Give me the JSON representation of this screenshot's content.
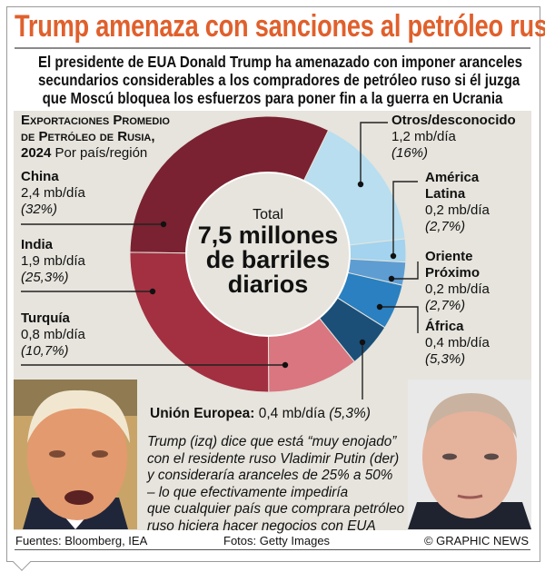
{
  "title": "Trump amenaza con sanciones al petróleo ruso",
  "subtitle_lines": [
    "El presidente de EUA Donald Trump ha amenazado con imponer aranceles",
    "secundarios considerables a los compradores de petróleo ruso si él juzga",
    "que Moscú bloquea los esfuerzos para poner fin a la guerra en Ucrania"
  ],
  "chart_data": {
    "type": "pie",
    "variant": "donut",
    "title_line1": "Exportaciones Promedio",
    "title_line2": "de Petróleo de Rusia,",
    "title_year": "2024",
    "title_suffix": "Por país/región",
    "center_label": "Total",
    "center_value_lines": [
      "7,5 millones",
      "de barriles",
      "diarios"
    ],
    "total_mbd": 7.5,
    "unit": "mb/día",
    "slices": [
      {
        "name": "China",
        "value": 2.4,
        "value_label": "2,4 mb/día",
        "percent": 32,
        "percent_label": "(32%)",
        "color": "#7a2231"
      },
      {
        "name": "Otros/desconocido",
        "value": 1.2,
        "value_label": "1,2 mb/día",
        "percent": 16,
        "percent_label": "(16%)",
        "color": "#b8def0"
      },
      {
        "name": "América Latina",
        "value": 0.2,
        "value_label": "0,2 mb/día",
        "percent": 2.7,
        "percent_label": "(2,7%)",
        "color": "#a3d3ee"
      },
      {
        "name": "Oriente Próximo",
        "value": 0.2,
        "value_label": "0,2 mb/día",
        "percent": 2.7,
        "percent_label": "(2,7%)",
        "color": "#5e9dd2"
      },
      {
        "name": "África",
        "value": 0.4,
        "value_label": "0,4 mb/día",
        "percent": 5.3,
        "percent_label": "(5,3%)",
        "color": "#2a80c0"
      },
      {
        "name": "Unión Europea",
        "value": 0.4,
        "value_label": "0,4 mb/día",
        "percent": 5.3,
        "percent_label": "(5,3%)",
        "color": "#1b4f78"
      },
      {
        "name": "Turquía",
        "value": 0.8,
        "value_label": "0,8 mb/día",
        "percent": 10.7,
        "percent_label": "(10,7%)",
        "color": "#d97680"
      },
      {
        "name": "India",
        "value": 1.9,
        "value_label": "1,9 mb/día",
        "percent": 25.3,
        "percent_label": "(25,3%)",
        "color": "#a33041"
      }
    ],
    "label_lines": {
      "america_latina": [
        "América",
        "Latina"
      ],
      "oriente_proximo": [
        "Oriente",
        "Próximo"
      ]
    }
  },
  "caption_lines": [
    "Trump (izq) dice que está “muy enojado”",
    "con el residente ruso Vladimir Putin (der)",
    "y consideraría aranceles de 25% a 50%",
    "– lo que efectivamente impediría",
    "que cualquier país que comprara petróleo",
    "ruso hiciera hacer negocios con EUA"
  ],
  "footer": {
    "sources": "Fuentes: Bloomberg, IEA",
    "photos": "Fotos: Getty Images",
    "credit": "© GRAPHIC NEWS"
  },
  "colors": {
    "title": "#e0602c",
    "panel": "#e6e4dc"
  }
}
